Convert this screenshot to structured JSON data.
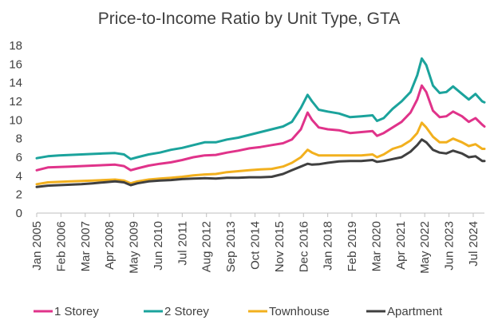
{
  "chart_data": {
    "type": "line",
    "title": "Price-to-Income  Ratio by Unit Type, GTA",
    "xlabel": "",
    "ylabel": "",
    "ylim": [
      0,
      18
    ],
    "yticks": [
      0,
      2,
      4,
      6,
      8,
      10,
      12,
      14,
      16,
      18
    ],
    "xlim": [
      2005.0,
      2025.0
    ],
    "x_tick_labels": [
      "Jan 2005",
      "Feb 2006",
      "Mar 2007",
      "Apr 2008",
      "May 2009",
      "Jun 2010",
      "Jul 2011",
      "Aug 2012",
      "Sep 2013",
      "Oct 2014",
      "Nov 2015",
      "Dec 2016",
      "Jan 2018",
      "Feb 2019",
      "Mar 2020",
      "Apr 2021",
      "May 2022",
      "Jun 2023",
      "Jul 2024"
    ],
    "x_tick_values": [
      2005.0,
      2006.083,
      2007.167,
      2008.25,
      2009.333,
      2010.417,
      2011.5,
      2012.583,
      2013.667,
      2014.75,
      2015.833,
      2016.917,
      2018.0,
      2019.083,
      2020.167,
      2021.25,
      2022.333,
      2023.417,
      2024.5
    ],
    "legend_position": "bottom",
    "series": [
      {
        "name": "1 Storey",
        "color": "#E0338A",
        "points": [
          [
            2005.0,
            4.6
          ],
          [
            2005.5,
            4.9
          ],
          [
            2006.0,
            4.95
          ],
          [
            2006.5,
            5.0
          ],
          [
            2007.0,
            5.05
          ],
          [
            2007.5,
            5.1
          ],
          [
            2008.0,
            5.15
          ],
          [
            2008.5,
            5.2
          ],
          [
            2008.9,
            5.05
          ],
          [
            2009.2,
            4.6
          ],
          [
            2009.5,
            4.8
          ],
          [
            2010.0,
            5.1
          ],
          [
            2010.5,
            5.3
          ],
          [
            2011.0,
            5.45
          ],
          [
            2011.5,
            5.7
          ],
          [
            2012.0,
            6.0
          ],
          [
            2012.5,
            6.2
          ],
          [
            2013.0,
            6.25
          ],
          [
            2013.5,
            6.5
          ],
          [
            2014.0,
            6.7
          ],
          [
            2014.5,
            6.95
          ],
          [
            2015.0,
            7.1
          ],
          [
            2015.5,
            7.3
          ],
          [
            2016.0,
            7.5
          ],
          [
            2016.4,
            7.9
          ],
          [
            2016.8,
            9.0
          ],
          [
            2017.1,
            10.8
          ],
          [
            2017.3,
            10.0
          ],
          [
            2017.6,
            9.2
          ],
          [
            2018.0,
            9.0
          ],
          [
            2018.5,
            8.9
          ],
          [
            2019.0,
            8.6
          ],
          [
            2019.5,
            8.7
          ],
          [
            2020.0,
            8.8
          ],
          [
            2020.2,
            8.3
          ],
          [
            2020.5,
            8.6
          ],
          [
            2020.9,
            9.2
          ],
          [
            2021.3,
            9.8
          ],
          [
            2021.7,
            10.8
          ],
          [
            2022.0,
            12.2
          ],
          [
            2022.2,
            13.7
          ],
          [
            2022.4,
            13.0
          ],
          [
            2022.7,
            11.0
          ],
          [
            2023.0,
            10.3
          ],
          [
            2023.3,
            10.4
          ],
          [
            2023.6,
            10.9
          ],
          [
            2024.0,
            10.4
          ],
          [
            2024.3,
            9.8
          ],
          [
            2024.6,
            10.2
          ],
          [
            2024.9,
            9.5
          ],
          [
            2025.0,
            9.3
          ]
        ]
      },
      {
        "name": "2 Storey",
        "color": "#1BA39C",
        "points": [
          [
            2005.0,
            5.9
          ],
          [
            2005.5,
            6.1
          ],
          [
            2006.0,
            6.2
          ],
          [
            2006.5,
            6.25
          ],
          [
            2007.0,
            6.3
          ],
          [
            2007.5,
            6.35
          ],
          [
            2008.0,
            6.4
          ],
          [
            2008.5,
            6.45
          ],
          [
            2008.9,
            6.3
          ],
          [
            2009.2,
            5.8
          ],
          [
            2009.5,
            6.0
          ],
          [
            2010.0,
            6.3
          ],
          [
            2010.5,
            6.5
          ],
          [
            2011.0,
            6.8
          ],
          [
            2011.5,
            7.0
          ],
          [
            2012.0,
            7.3
          ],
          [
            2012.5,
            7.6
          ],
          [
            2013.0,
            7.6
          ],
          [
            2013.5,
            7.9
          ],
          [
            2014.0,
            8.1
          ],
          [
            2014.5,
            8.4
          ],
          [
            2015.0,
            8.7
          ],
          [
            2015.5,
            9.0
          ],
          [
            2016.0,
            9.3
          ],
          [
            2016.4,
            9.8
          ],
          [
            2016.8,
            11.3
          ],
          [
            2017.1,
            12.7
          ],
          [
            2017.3,
            12.0
          ],
          [
            2017.6,
            11.1
          ],
          [
            2018.0,
            10.9
          ],
          [
            2018.5,
            10.7
          ],
          [
            2019.0,
            10.3
          ],
          [
            2019.5,
            10.4
          ],
          [
            2020.0,
            10.5
          ],
          [
            2020.2,
            9.9
          ],
          [
            2020.5,
            10.2
          ],
          [
            2020.9,
            11.2
          ],
          [
            2021.3,
            12.0
          ],
          [
            2021.7,
            13.0
          ],
          [
            2022.0,
            14.8
          ],
          [
            2022.2,
            16.6
          ],
          [
            2022.4,
            15.9
          ],
          [
            2022.7,
            13.7
          ],
          [
            2023.0,
            12.9
          ],
          [
            2023.3,
            13.0
          ],
          [
            2023.6,
            13.6
          ],
          [
            2024.0,
            12.8
          ],
          [
            2024.3,
            12.2
          ],
          [
            2024.6,
            12.8
          ],
          [
            2024.9,
            12.0
          ],
          [
            2025.0,
            11.9
          ]
        ]
      },
      {
        "name": "Townhouse",
        "color": "#F2B01E",
        "points": [
          [
            2005.0,
            3.1
          ],
          [
            2005.5,
            3.3
          ],
          [
            2006.0,
            3.35
          ],
          [
            2006.5,
            3.4
          ],
          [
            2007.0,
            3.45
          ],
          [
            2007.5,
            3.5
          ],
          [
            2008.0,
            3.55
          ],
          [
            2008.5,
            3.6
          ],
          [
            2008.9,
            3.5
          ],
          [
            2009.2,
            3.2
          ],
          [
            2009.5,
            3.4
          ],
          [
            2010.0,
            3.6
          ],
          [
            2010.5,
            3.7
          ],
          [
            2011.0,
            3.8
          ],
          [
            2011.5,
            3.9
          ],
          [
            2012.0,
            4.05
          ],
          [
            2012.5,
            4.15
          ],
          [
            2013.0,
            4.2
          ],
          [
            2013.5,
            4.4
          ],
          [
            2014.0,
            4.5
          ],
          [
            2014.5,
            4.6
          ],
          [
            2015.0,
            4.7
          ],
          [
            2015.5,
            4.75
          ],
          [
            2016.0,
            5.0
          ],
          [
            2016.4,
            5.4
          ],
          [
            2016.8,
            6.0
          ],
          [
            2017.1,
            6.8
          ],
          [
            2017.3,
            6.5
          ],
          [
            2017.6,
            6.2
          ],
          [
            2018.0,
            6.2
          ],
          [
            2018.5,
            6.2
          ],
          [
            2019.0,
            6.2
          ],
          [
            2019.5,
            6.2
          ],
          [
            2020.0,
            6.3
          ],
          [
            2020.2,
            6.0
          ],
          [
            2020.5,
            6.3
          ],
          [
            2020.9,
            6.9
          ],
          [
            2021.3,
            7.2
          ],
          [
            2021.7,
            7.8
          ],
          [
            2022.0,
            8.6
          ],
          [
            2022.2,
            9.7
          ],
          [
            2022.4,
            9.2
          ],
          [
            2022.7,
            8.2
          ],
          [
            2023.0,
            7.6
          ],
          [
            2023.3,
            7.6
          ],
          [
            2023.6,
            8.0
          ],
          [
            2024.0,
            7.6
          ],
          [
            2024.3,
            7.2
          ],
          [
            2024.6,
            7.4
          ],
          [
            2024.9,
            6.9
          ],
          [
            2025.0,
            6.9
          ]
        ]
      },
      {
        "name": "Apartment",
        "color": "#404040",
        "points": [
          [
            2005.0,
            2.8
          ],
          [
            2005.5,
            2.95
          ],
          [
            2006.0,
            3.0
          ],
          [
            2006.5,
            3.05
          ],
          [
            2007.0,
            3.1
          ],
          [
            2007.5,
            3.2
          ],
          [
            2008.0,
            3.3
          ],
          [
            2008.5,
            3.4
          ],
          [
            2008.9,
            3.3
          ],
          [
            2009.2,
            3.0
          ],
          [
            2009.5,
            3.2
          ],
          [
            2010.0,
            3.4
          ],
          [
            2010.5,
            3.5
          ],
          [
            2011.0,
            3.55
          ],
          [
            2011.5,
            3.65
          ],
          [
            2012.0,
            3.7
          ],
          [
            2012.5,
            3.75
          ],
          [
            2013.0,
            3.7
          ],
          [
            2013.5,
            3.8
          ],
          [
            2014.0,
            3.8
          ],
          [
            2014.5,
            3.85
          ],
          [
            2015.0,
            3.85
          ],
          [
            2015.5,
            3.9
          ],
          [
            2016.0,
            4.2
          ],
          [
            2016.4,
            4.6
          ],
          [
            2016.8,
            5.0
          ],
          [
            2017.1,
            5.3
          ],
          [
            2017.3,
            5.2
          ],
          [
            2017.6,
            5.25
          ],
          [
            2018.0,
            5.4
          ],
          [
            2018.5,
            5.55
          ],
          [
            2019.0,
            5.6
          ],
          [
            2019.5,
            5.6
          ],
          [
            2020.0,
            5.7
          ],
          [
            2020.2,
            5.5
          ],
          [
            2020.5,
            5.6
          ],
          [
            2020.9,
            5.8
          ],
          [
            2021.3,
            6.0
          ],
          [
            2021.7,
            6.6
          ],
          [
            2022.0,
            7.3
          ],
          [
            2022.2,
            7.9
          ],
          [
            2022.4,
            7.6
          ],
          [
            2022.7,
            6.8
          ],
          [
            2023.0,
            6.5
          ],
          [
            2023.3,
            6.4
          ],
          [
            2023.6,
            6.7
          ],
          [
            2024.0,
            6.4
          ],
          [
            2024.3,
            6.0
          ],
          [
            2024.6,
            6.1
          ],
          [
            2024.9,
            5.6
          ],
          [
            2025.0,
            5.6
          ]
        ]
      }
    ]
  }
}
